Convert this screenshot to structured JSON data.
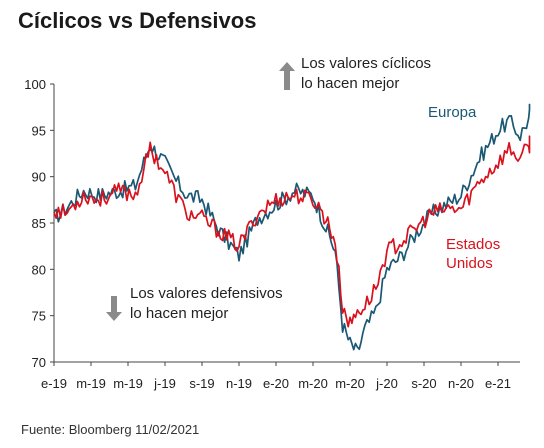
{
  "title": "Cíclicos vs Defensivos",
  "source": "Fuente: Bloomberg 11/02/2021",
  "chart_data": {
    "type": "line",
    "title": "Cíclicos vs Defensivos",
    "ylim": [
      70,
      100
    ],
    "yticks": [
      "70",
      "75",
      "80",
      "85",
      "90",
      "95",
      "100"
    ],
    "xticks": [
      "e-19",
      "m-19",
      "m-19",
      "j-19",
      "s-19",
      "n-19",
      "e-20",
      "m-20",
      "m-20",
      "j-20",
      "s-20",
      "n-20",
      "e-21"
    ],
    "annotations": {
      "up_line1": "Los valores cíclicos",
      "up_line2": "lo hacen mejor",
      "down_line1": "Los valores defensivos",
      "down_line2": "lo hacen mejor"
    },
    "series": [
      {
        "name": "Europa",
        "color": "#1a5873",
        "x": [
          0,
          0.3,
          0.8,
          1.2,
          1.8,
          2.2,
          2.6,
          3.0,
          3.3,
          3.6,
          4.0,
          4.5,
          5.0,
          5.5,
          6.0,
          6.5,
          7.0,
          7.2,
          7.4,
          7.6,
          7.8,
          8.0,
          8.2,
          8.4,
          8.7,
          9.0,
          9.4,
          9.8,
          10.2,
          10.6,
          11.0,
          11.5,
          12.0,
          12.3,
          12.6,
          13.0
        ],
        "y": [
          85.5,
          86.5,
          88.5,
          88.0,
          88.5,
          89.0,
          93.5,
          91.5,
          89.5,
          88.0,
          87.5,
          84.0,
          81.5,
          85.5,
          87.0,
          88.5,
          88.0,
          86.0,
          84.0,
          82.0,
          74.0,
          72.0,
          71.0,
          73.5,
          75.5,
          80.0,
          81.5,
          84.0,
          86.0,
          87.0,
          88.0,
          92.0,
          95.0,
          96.0,
          94.5,
          97.5
        ]
      },
      {
        "name": "Estados Unidos",
        "color": "#d9111d",
        "x": [
          0,
          0.3,
          0.8,
          1.2,
          1.8,
          2.2,
          2.6,
          3.0,
          3.3,
          3.6,
          4.0,
          4.5,
          5.0,
          5.5,
          6.0,
          6.5,
          7.0,
          7.2,
          7.4,
          7.6,
          7.8,
          8.0,
          8.2,
          8.4,
          8.7,
          9.0,
          9.4,
          9.8,
          10.2,
          10.6,
          11.0,
          11.5,
          12.0,
          12.3,
          12.6,
          13.0
        ],
        "y": [
          86.5,
          86.0,
          88.0,
          87.5,
          88.5,
          88.0,
          93.0,
          90.5,
          88.0,
          86.0,
          85.5,
          84.0,
          82.5,
          86.0,
          87.5,
          88.0,
          87.5,
          86.5,
          85.0,
          83.0,
          76.0,
          74.0,
          75.5,
          76.0,
          78.0,
          82.0,
          83.0,
          84.5,
          86.0,
          86.5,
          86.5,
          89.5,
          91.5,
          93.0,
          92.0,
          94.0
        ]
      }
    ],
    "series_labels": {
      "europa": "Europa",
      "eeuu_line1": "Estados",
      "eeuu_line2": "Unidos"
    }
  }
}
